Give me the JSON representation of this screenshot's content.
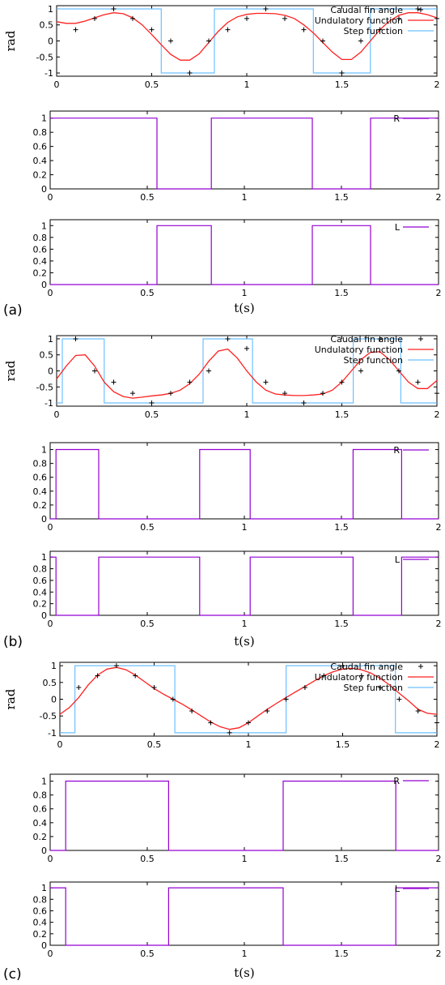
{
  "labels": {
    "panels": [
      "(a)",
      "(b)",
      "(c)"
    ],
    "ylabel": "rad",
    "xlabel": "t(s)"
  },
  "colors": {
    "caudal": "#000000",
    "undulatory": "#ff2020",
    "step": "#6ec0ff",
    "signal": "#9400d3",
    "axis": "#000000"
  },
  "chart_data": [
    {
      "panel": "(a)",
      "type": "line",
      "xlabel": "",
      "ylabel": "rad",
      "xlim": [
        0,
        2
      ],
      "ylim": [
        -1.1,
        1.1
      ],
      "xticks": [
        "0",
        "0.5",
        "1",
        "1.5",
        "2"
      ],
      "yticks": [
        "1",
        "0.5",
        "0",
        "-0.5",
        "-1"
      ],
      "legend_position": "top-right",
      "series": [
        {
          "name": "Caudal fin angle",
          "style": "points",
          "x": [
            0.1,
            0.2,
            0.3,
            0.4,
            0.5,
            0.6,
            0.7,
            0.8,
            0.9,
            1.0,
            1.1,
            1.2,
            1.3,
            1.4,
            1.5,
            1.6,
            1.7,
            1.8,
            1.9,
            2.0
          ],
          "y": [
            0.35,
            0.7,
            1.0,
            0.7,
            0.35,
            0.0,
            -1.0,
            0.0,
            0.35,
            0.7,
            1.0,
            0.7,
            0.35,
            0.0,
            -1.0,
            0.0,
            0.35,
            0.7,
            1.0,
            0.7
          ]
        },
        {
          "name": "Undulatory function",
          "style": "line",
          "x": [
            0,
            0.05,
            0.1,
            0.15,
            0.2,
            0.25,
            0.3,
            0.35,
            0.4,
            0.45,
            0.5,
            0.55,
            0.6,
            0.65,
            0.7,
            0.75,
            0.8,
            0.85,
            0.9,
            0.95,
            1.0,
            1.05,
            1.1,
            1.15,
            1.2,
            1.25,
            1.3,
            1.35,
            1.4,
            1.45,
            1.5,
            1.55,
            1.6,
            1.65,
            1.7,
            1.75,
            1.8,
            1.85,
            1.9,
            1.95,
            2.0
          ],
          "y": [
            0.6,
            0.55,
            0.55,
            0.62,
            0.72,
            0.82,
            0.88,
            0.85,
            0.72,
            0.5,
            0.2,
            -0.12,
            -0.42,
            -0.6,
            -0.6,
            -0.4,
            -0.05,
            0.3,
            0.58,
            0.75,
            0.83,
            0.86,
            0.86,
            0.85,
            0.8,
            0.7,
            0.5,
            0.25,
            -0.05,
            -0.35,
            -0.58,
            -0.58,
            -0.35,
            0.0,
            0.35,
            0.62,
            0.8,
            0.88,
            0.88,
            0.82,
            0.72
          ]
        },
        {
          "name": "Step function",
          "style": "step",
          "x": [
            0,
            0.55,
            0.55,
            0.83,
            0.83,
            1.35,
            1.35,
            1.65,
            1.65,
            2.0
          ],
          "y": [
            1,
            1,
            -1,
            -1,
            1,
            1,
            -1,
            -1,
            1,
            1
          ]
        }
      ]
    },
    {
      "panel": "(a)",
      "type": "line",
      "xlim": [
        0,
        2
      ],
      "ylim": [
        0,
        1.1
      ],
      "xticks": [
        "0",
        "0.5",
        "1",
        "1.5",
        "2"
      ],
      "yticks": [
        "1",
        "0.8",
        "0.6",
        "0.4",
        "0.2",
        "0"
      ],
      "legend_position": "top-right",
      "series": [
        {
          "name": "R",
          "style": "step",
          "x": [
            0,
            0.55,
            0.55,
            0.83,
            0.83,
            1.35,
            1.35,
            1.65,
            1.65,
            2.0
          ],
          "y": [
            1,
            1,
            0,
            0,
            1,
            1,
            0,
            0,
            1,
            1
          ]
        }
      ]
    },
    {
      "panel": "(a)",
      "type": "line",
      "xlabel": "t(s)",
      "xlim": [
        0,
        2
      ],
      "ylim": [
        0,
        1.1
      ],
      "xticks": [
        "0",
        "0.5",
        "1",
        "1.5",
        "2"
      ],
      "yticks": [
        "1",
        "0.8",
        "0.6",
        "0.4",
        "0.2",
        "0"
      ],
      "legend_position": "top-right",
      "series": [
        {
          "name": "L",
          "style": "step",
          "x": [
            0,
            0.55,
            0.55,
            0.83,
            0.83,
            1.35,
            1.35,
            1.65,
            1.65,
            2.0
          ],
          "y": [
            0,
            0,
            1,
            1,
            0,
            0,
            1,
            1,
            0,
            0
          ]
        }
      ]
    },
    {
      "panel": "(b)",
      "type": "line",
      "ylabel": "rad",
      "xlim": [
        0,
        2
      ],
      "ylim": [
        -1.1,
        1.1
      ],
      "xticks": [
        "0",
        "0.5",
        "1",
        "1.5",
        "2"
      ],
      "yticks": [
        "1",
        "0.5",
        "0",
        "-0.5",
        "-1"
      ],
      "legend_position": "top-right",
      "series": [
        {
          "name": "Caudal fin angle",
          "style": "points",
          "x": [
            0.1,
            0.2,
            0.3,
            0.4,
            0.5,
            0.6,
            0.7,
            0.8,
            0.9,
            1.0,
            1.1,
            1.2,
            1.3,
            1.4,
            1.5,
            1.6,
            1.7,
            1.8,
            1.9,
            2.0
          ],
          "y": [
            1.0,
            0.0,
            -0.35,
            -0.7,
            -1.0,
            -0.7,
            -0.35,
            0.0,
            1.0,
            0.7,
            -0.35,
            -0.7,
            -1.0,
            -0.7,
            -0.35,
            0.0,
            1.0,
            0.0,
            -0.35,
            -0.7
          ]
        },
        {
          "name": "Undulatory function",
          "style": "line",
          "x": [
            0,
            0.05,
            0.1,
            0.15,
            0.2,
            0.25,
            0.3,
            0.35,
            0.4,
            0.45,
            0.5,
            0.55,
            0.6,
            0.65,
            0.7,
            0.75,
            0.8,
            0.85,
            0.9,
            0.95,
            1.0,
            1.05,
            1.1,
            1.15,
            1.2,
            1.25,
            1.3,
            1.35,
            1.4,
            1.45,
            1.5,
            1.55,
            1.6,
            1.65,
            1.7,
            1.75,
            1.8,
            1.85,
            1.9,
            1.95,
            2.0
          ],
          "y": [
            -0.25,
            0.15,
            0.48,
            0.5,
            0.15,
            -0.35,
            -0.65,
            -0.8,
            -0.85,
            -0.82,
            -0.78,
            -0.75,
            -0.7,
            -0.6,
            -0.4,
            -0.1,
            0.3,
            0.62,
            0.68,
            0.4,
            0.0,
            -0.35,
            -0.6,
            -0.72,
            -0.75,
            -0.77,
            -0.77,
            -0.75,
            -0.72,
            -0.6,
            -0.35,
            0.0,
            0.35,
            0.58,
            0.6,
            0.35,
            0.0,
            -0.35,
            -0.55,
            -0.55,
            -0.3
          ]
        },
        {
          "name": "Step function",
          "style": "step",
          "x": [
            0,
            0.03,
            0.03,
            0.25,
            0.25,
            0.77,
            0.77,
            1.03,
            1.03,
            1.56,
            1.56,
            1.81,
            1.81,
            2.0
          ],
          "y": [
            -1,
            -1,
            1,
            1,
            -1,
            -1,
            1,
            1,
            -1,
            -1,
            1,
            1,
            -1,
            -1
          ]
        }
      ]
    },
    {
      "panel": "(b)",
      "type": "line",
      "xlim": [
        0,
        2
      ],
      "ylim": [
        0,
        1.1
      ],
      "xticks": [
        "0",
        "0.5",
        "1",
        "1.5",
        "2"
      ],
      "yticks": [
        "1",
        "0.8",
        "0.6",
        "0.4",
        "0.2",
        "0"
      ],
      "legend_position": "top-right",
      "series": [
        {
          "name": "R",
          "style": "step",
          "x": [
            0,
            0.03,
            0.03,
            0.25,
            0.25,
            0.77,
            0.77,
            1.03,
            1.03,
            1.56,
            1.56,
            1.81,
            1.81,
            2.0
          ],
          "y": [
            0,
            0,
            1,
            1,
            0,
            0,
            1,
            1,
            0,
            0,
            1,
            1,
            0,
            0
          ]
        }
      ]
    },
    {
      "panel": "(b)",
      "type": "line",
      "xlabel": "t(s)",
      "xlim": [
        0,
        2
      ],
      "ylim": [
        0,
        1.1
      ],
      "xticks": [
        "0",
        "0.5",
        "1",
        "1.5",
        "2"
      ],
      "yticks": [
        "1",
        "0.8",
        "0.6",
        "0.4",
        "0.2",
        "0"
      ],
      "legend_position": "top-right",
      "series": [
        {
          "name": "L",
          "style": "step",
          "x": [
            0,
            0.03,
            0.03,
            0.25,
            0.25,
            0.77,
            0.77,
            1.03,
            1.03,
            1.56,
            1.56,
            1.81,
            1.81,
            2.0
          ],
          "y": [
            1,
            1,
            0,
            0,
            1,
            1,
            0,
            0,
            1,
            1,
            0,
            0,
            1,
            1
          ]
        }
      ]
    },
    {
      "panel": "(c)",
      "type": "line",
      "ylabel": "rad",
      "xlim": [
        0,
        2
      ],
      "ylim": [
        -1.1,
        1.1
      ],
      "xticks": [
        "0",
        "0.5",
        "1",
        "1.5",
        "2"
      ],
      "yticks": [
        "1",
        "0.5",
        "0",
        "-0.5",
        "-1"
      ],
      "legend_position": "top-right",
      "series": [
        {
          "name": "Caudal fin angle",
          "style": "points",
          "x": [
            0.1,
            0.2,
            0.3,
            0.4,
            0.5,
            0.6,
            0.7,
            0.8,
            0.9,
            1.0,
            1.1,
            1.2,
            1.3,
            1.4,
            1.5,
            1.6,
            1.7,
            1.8,
            1.9,
            2.0
          ],
          "y": [
            0.35,
            0.7,
            1.0,
            0.7,
            0.35,
            0.0,
            -0.35,
            -0.7,
            -1.0,
            -0.7,
            -0.35,
            0.0,
            0.35,
            0.7,
            1.0,
            0.7,
            0.35,
            0.0,
            -0.35,
            -0.7
          ]
        },
        {
          "name": "Undulatory function",
          "style": "line",
          "x": [
            0,
            0.05,
            0.1,
            0.15,
            0.2,
            0.25,
            0.3,
            0.35,
            0.4,
            0.45,
            0.5,
            0.55,
            0.6,
            0.65,
            0.7,
            0.75,
            0.8,
            0.85,
            0.9,
            0.95,
            1.0,
            1.05,
            1.1,
            1.15,
            1.2,
            1.25,
            1.3,
            1.35,
            1.4,
            1.45,
            1.5,
            1.55,
            1.6,
            1.65,
            1.7,
            1.75,
            1.8,
            1.85,
            1.9,
            1.95,
            2.0
          ],
          "y": [
            -0.45,
            -0.25,
            0.05,
            0.42,
            0.72,
            0.9,
            0.95,
            0.88,
            0.72,
            0.52,
            0.32,
            0.15,
            0.0,
            -0.15,
            -0.32,
            -0.5,
            -0.68,
            -0.82,
            -0.9,
            -0.85,
            -0.7,
            -0.5,
            -0.3,
            -0.12,
            0.05,
            0.22,
            0.38,
            0.55,
            0.7,
            0.82,
            0.9,
            0.92,
            0.88,
            0.78,
            0.62,
            0.42,
            0.18,
            -0.05,
            -0.3,
            -0.42,
            -0.45
          ]
        },
        {
          "name": "Step function",
          "style": "step",
          "x": [
            0,
            0.08,
            0.08,
            0.61,
            0.61,
            1.2,
            1.2,
            1.78,
            1.78,
            2.0
          ],
          "y": [
            -1,
            -1,
            1,
            1,
            -1,
            -1,
            1,
            1,
            -1,
            -1
          ]
        }
      ]
    },
    {
      "panel": "(c)",
      "type": "line",
      "xlim": [
        0,
        2
      ],
      "ylim": [
        0,
        1.1
      ],
      "xticks": [
        "0",
        "0.5",
        "1",
        "1.5",
        "2"
      ],
      "yticks": [
        "1",
        "0.8",
        "0.6",
        "0.4",
        "0.2",
        "0"
      ],
      "legend_position": "top-right",
      "series": [
        {
          "name": "R",
          "style": "step",
          "x": [
            0,
            0.08,
            0.08,
            0.61,
            0.61,
            1.2,
            1.2,
            1.78,
            1.78,
            2.0
          ],
          "y": [
            0,
            0,
            1,
            1,
            0,
            0,
            1,
            1,
            0,
            0
          ]
        }
      ]
    },
    {
      "panel": "(c)",
      "type": "line",
      "xlabel": "t(s)",
      "xlim": [
        0,
        2
      ],
      "ylim": [
        0,
        1.1
      ],
      "xticks": [
        "0",
        "0.5",
        "1",
        "1.5",
        "2"
      ],
      "yticks": [
        "1",
        "0.8",
        "0.6",
        "0.4",
        "0.2",
        "0"
      ],
      "legend_position": "top-right",
      "series": [
        {
          "name": "L",
          "style": "step",
          "x": [
            0,
            0.08,
            0.08,
            0.61,
            0.61,
            1.2,
            1.2,
            1.78,
            1.78,
            2.0
          ],
          "y": [
            1,
            1,
            0,
            0,
            1,
            1,
            0,
            0,
            1,
            1
          ]
        }
      ]
    }
  ]
}
